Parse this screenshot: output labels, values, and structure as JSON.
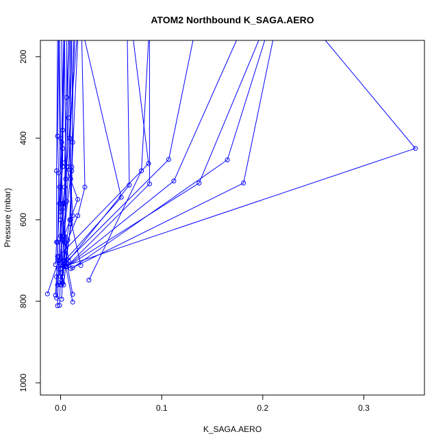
{
  "chart_data": {
    "type": "line",
    "title": "ATOM2 Northbound K_SAGA.AERO",
    "xlabel": "K_SAGA.AERO",
    "ylabel": "Pressure (mbar)",
    "xlim": [
      -0.02,
      0.36
    ],
    "ylim": [
      1030,
      160
    ],
    "y_reversed": true,
    "grid": false,
    "legend": "none",
    "color": "#0000ff",
    "x_ticks": [
      0.0,
      0.1,
      0.2,
      0.3
    ],
    "x_tick_labels": [
      "0.0",
      "0.1",
      "0.2",
      "0.3"
    ],
    "y_ticks": [
      200,
      400,
      600,
      800,
      1000
    ],
    "y_tick_labels": [
      "200",
      "400",
      "600",
      "800",
      "1000"
    ],
    "series": [
      {
        "points": [
          [
            -0.013,
            782
          ],
          [
            -0.002,
            700
          ],
          [
            0.004,
            520
          ],
          [
            0.006,
            300
          ],
          [
            0.006,
            160
          ]
        ]
      },
      {
        "points": [
          [
            -0.004,
            792
          ],
          [
            -0.003,
            655
          ],
          [
            -0.001,
            560
          ],
          [
            0.002,
            470
          ],
          [
            0.003,
            160
          ]
        ]
      },
      {
        "points": [
          [
            -0.003,
            811
          ],
          [
            -0.002,
            720
          ],
          [
            0.0,
            600
          ],
          [
            0.002,
            425
          ],
          [
            0.004,
            160
          ]
        ]
      },
      {
        "points": [
          [
            -0.001,
            810
          ],
          [
            0.0,
            720
          ],
          [
            0.003,
            570
          ],
          [
            0.008,
            350
          ],
          [
            0.01,
            160
          ]
        ]
      },
      {
        "points": [
          [
            0.001,
            795
          ],
          [
            0.002,
            740
          ],
          [
            0.004,
            655
          ],
          [
            0.006,
            470
          ],
          [
            0.008,
            160
          ]
        ]
      },
      {
        "points": [
          [
            0.012,
            802
          ],
          [
            0.004,
            700
          ],
          [
            0.002,
            560
          ],
          [
            0.0,
            400
          ],
          [
            -0.001,
            160
          ]
        ]
      },
      {
        "points": [
          [
            0.012,
            783
          ],
          [
            0.006,
            705
          ],
          [
            0.004,
            640
          ],
          [
            0.005,
            500
          ],
          [
            0.004,
            160
          ]
        ]
      },
      {
        "points": [
          [
            -0.005,
            785
          ],
          [
            -0.004,
            740
          ],
          [
            -0.003,
            690
          ],
          [
            -0.002,
            485
          ],
          [
            -0.003,
            395
          ],
          [
            -0.002,
            160
          ]
        ]
      },
      {
        "points": [
          [
            0.0,
            760
          ],
          [
            0.002,
            740
          ],
          [
            0.012,
            590
          ],
          [
            0.01,
            500
          ],
          [
            0.009,
            160
          ]
        ]
      },
      {
        "points": [
          [
            0.003,
            760
          ],
          [
            0.005,
            715
          ],
          [
            0.01,
            610
          ],
          [
            0.012,
            410
          ],
          [
            0.011,
            160
          ]
        ]
      },
      {
        "points": [
          [
            -0.003,
            760
          ],
          [
            -0.001,
            700
          ],
          [
            0.006,
            555
          ],
          [
            0.008,
            470
          ],
          [
            0.014,
            160
          ]
        ]
      },
      {
        "points": [
          [
            0.001,
            750
          ],
          [
            0.003,
            700
          ],
          [
            0.009,
            600
          ],
          [
            0.011,
            480
          ],
          [
            0.017,
            160
          ]
        ]
      },
      {
        "points": [
          [
            -0.001,
            738
          ],
          [
            -0.002,
            700
          ],
          [
            0.0,
            640
          ],
          [
            0.003,
            560
          ],
          [
            0.016,
            160
          ]
        ]
      },
      {
        "points": [
          [
            0.028,
            748
          ],
          [
            0.08,
            480
          ],
          [
            0.087,
            160
          ]
        ]
      },
      {
        "points": [
          [
            0.001,
            730
          ],
          [
            0.007,
            650
          ],
          [
            0.017,
            590
          ],
          [
            0.024,
            520
          ],
          [
            0.021,
            160
          ]
        ]
      },
      {
        "points": [
          [
            0.02,
            712
          ],
          [
            0.01,
            600
          ],
          [
            0.009,
            400
          ],
          [
            0.011,
            160
          ]
        ]
      },
      {
        "points": [
          [
            -0.002,
            715
          ],
          [
            0.002,
            650
          ],
          [
            0.017,
            550
          ],
          [
            0.004,
            460
          ],
          [
            0.008,
            160
          ]
        ]
      },
      {
        "points": [
          [
            -0.005,
            710
          ],
          [
            -0.004,
            655
          ],
          [
            -0.004,
            480
          ],
          [
            -0.003,
            160
          ]
        ]
      },
      {
        "points": [
          [
            0.0,
            712
          ],
          [
            0.06,
            545
          ],
          [
            0.024,
            160
          ]
        ]
      },
      {
        "points": [
          [
            0.004,
            712
          ],
          [
            0.068,
            515
          ],
          [
            0.066,
            160
          ]
        ]
      },
      {
        "points": [
          [
            0.006,
            715
          ],
          [
            0.088,
            512
          ],
          [
            0.088,
            160
          ]
        ]
      },
      {
        "points": [
          [
            -0.002,
            690
          ],
          [
            0.087,
            462
          ],
          [
            0.072,
            160
          ]
        ]
      },
      {
        "points": [
          [
            0.002,
            712
          ],
          [
            0.107,
            452
          ],
          [
            0.131,
            160
          ]
        ]
      },
      {
        "points": [
          [
            0.006,
            715
          ],
          [
            0.112,
            505
          ],
          [
            0.174,
            160
          ]
        ]
      },
      {
        "points": [
          [
            0.008,
            712
          ],
          [
            0.137,
            510
          ],
          [
            0.196,
            160
          ]
        ]
      },
      {
        "points": [
          [
            0.012,
            718
          ],
          [
            0.165,
            453
          ],
          [
            0.202,
            160
          ]
        ]
      },
      {
        "points": [
          [
            0.01,
            720
          ],
          [
            0.181,
            510
          ],
          [
            0.21,
            160
          ]
        ]
      },
      {
        "points": [
          [
            0.003,
            715
          ],
          [
            0.351,
            425
          ],
          [
            0.262,
            160
          ]
        ]
      },
      {
        "points": [
          [
            0.008,
            700
          ],
          [
            0.0,
            560
          ],
          [
            0.002,
            380
          ],
          [
            0.001,
            160
          ]
        ]
      },
      {
        "points": [
          [
            -0.003,
            655
          ],
          [
            -0.001,
            520
          ],
          [
            0.001,
            410
          ],
          [
            0.003,
            160
          ]
        ]
      },
      {
        "points": [
          [
            0.001,
            760
          ],
          [
            0.003,
            640
          ],
          [
            0.011,
            470
          ],
          [
            0.013,
            160
          ]
        ]
      },
      {
        "points": [
          [
            0.002,
            755
          ],
          [
            0.0,
            580
          ],
          [
            -0.002,
            160
          ]
        ]
      }
    ]
  }
}
